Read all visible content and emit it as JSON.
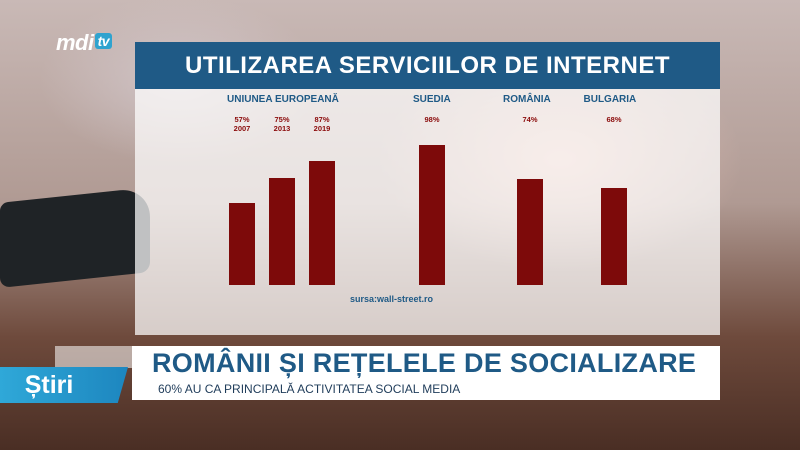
{
  "channel": {
    "logo_text": "mdi",
    "logo_badge": "tv"
  },
  "chart_data": {
    "type": "bar",
    "title": "UTILIZAREA SERVICIILOR DE INTERNET",
    "groups": [
      {
        "label": "UNIUNEA EUROPEANĂ",
        "bars": [
          {
            "pct_label": "57%",
            "year": "2007",
            "value": 57
          },
          {
            "pct_label": "75%",
            "year": "2013",
            "value": 75
          },
          {
            "pct_label": "87%",
            "year": "2019",
            "value": 87
          }
        ]
      },
      {
        "label": "SUEDIA",
        "bars": [
          {
            "pct_label": "98%",
            "year": "",
            "value": 98
          }
        ]
      },
      {
        "label": "ROMÂNIA",
        "bars": [
          {
            "pct_label": "74%",
            "year": "",
            "value": 74
          }
        ]
      },
      {
        "label": "BULGARIA",
        "bars": [
          {
            "pct_label": "68%",
            "year": "",
            "value": 68
          }
        ]
      }
    ],
    "source": "sursa:wall-street.ro",
    "colors": {
      "bar": "#7d0a0a",
      "header": "#1f5a86"
    }
  },
  "lower_third": {
    "section": "Știri",
    "headline": "ROMÂNII ȘI REȚELELE DE SOCIALIZARE",
    "subheadline": "60% AU CA PRINCIPALĂ ACTIVITATEA SOCIAL MEDIA"
  }
}
